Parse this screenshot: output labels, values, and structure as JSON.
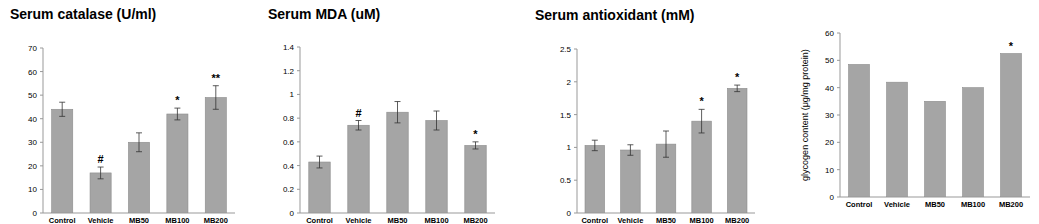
{
  "chart_data": [
    {
      "type": "bar",
      "title": "Serum catalase (U/ml)",
      "categories": [
        "Control",
        "Vehicle",
        "MB50",
        "MB100",
        "MB200"
      ],
      "values": [
        44,
        17,
        30,
        42,
        49
      ],
      "errors": [
        3,
        2.5,
        4,
        2.5,
        5
      ],
      "annotations": [
        null,
        "#",
        null,
        "*",
        "**"
      ],
      "color": "#a5a5a5",
      "ylim": [
        0,
        70
      ],
      "yticks": [
        0,
        10,
        20,
        30,
        40,
        50,
        60,
        70
      ],
      "grid": false
    },
    {
      "type": "bar",
      "title": "Serum MDA (uM)",
      "categories": [
        "Control",
        "Vehicle",
        "MB50",
        "MB100",
        "MB200"
      ],
      "values": [
        0.43,
        0.74,
        0.85,
        0.78,
        0.57
      ],
      "errors": [
        0.05,
        0.04,
        0.09,
        0.08,
        0.03
      ],
      "annotations": [
        null,
        "#",
        null,
        null,
        "*"
      ],
      "color": "#a5a5a5",
      "ylim": [
        0,
        1.4
      ],
      "yticks": [
        0,
        0.2,
        0.4,
        0.6,
        0.8,
        1,
        1.2,
        1.4
      ],
      "grid": false
    },
    {
      "type": "bar",
      "title": "Serum antioxidant (mM)",
      "categories": [
        "Control",
        "Vehicle",
        "MB50",
        "MB100",
        "MB200"
      ],
      "values": [
        1.03,
        0.96,
        1.05,
        1.4,
        1.9
      ],
      "errors": [
        0.08,
        0.08,
        0.2,
        0.18,
        0.05
      ],
      "annotations": [
        null,
        null,
        null,
        "*",
        "*"
      ],
      "color": "#a5a5a5",
      "ylim": [
        0,
        2.5
      ],
      "yticks": [
        0,
        0.5,
        1,
        1.5,
        2,
        2.5
      ],
      "grid": false
    },
    {
      "type": "bar",
      "y_label": "glycogen content (μg/mg protein)",
      "categories": [
        "Control",
        "Vehicle",
        "MB50",
        "MB100",
        "MB200"
      ],
      "values": [
        48.5,
        42,
        35,
        40,
        52.5
      ],
      "annotations": [
        null,
        null,
        null,
        null,
        "*"
      ],
      "color": "#a5a5a5",
      "ylim": [
        0,
        60
      ],
      "yticks": [
        0,
        10,
        20,
        30,
        40,
        50,
        60
      ],
      "grid": false
    }
  ]
}
